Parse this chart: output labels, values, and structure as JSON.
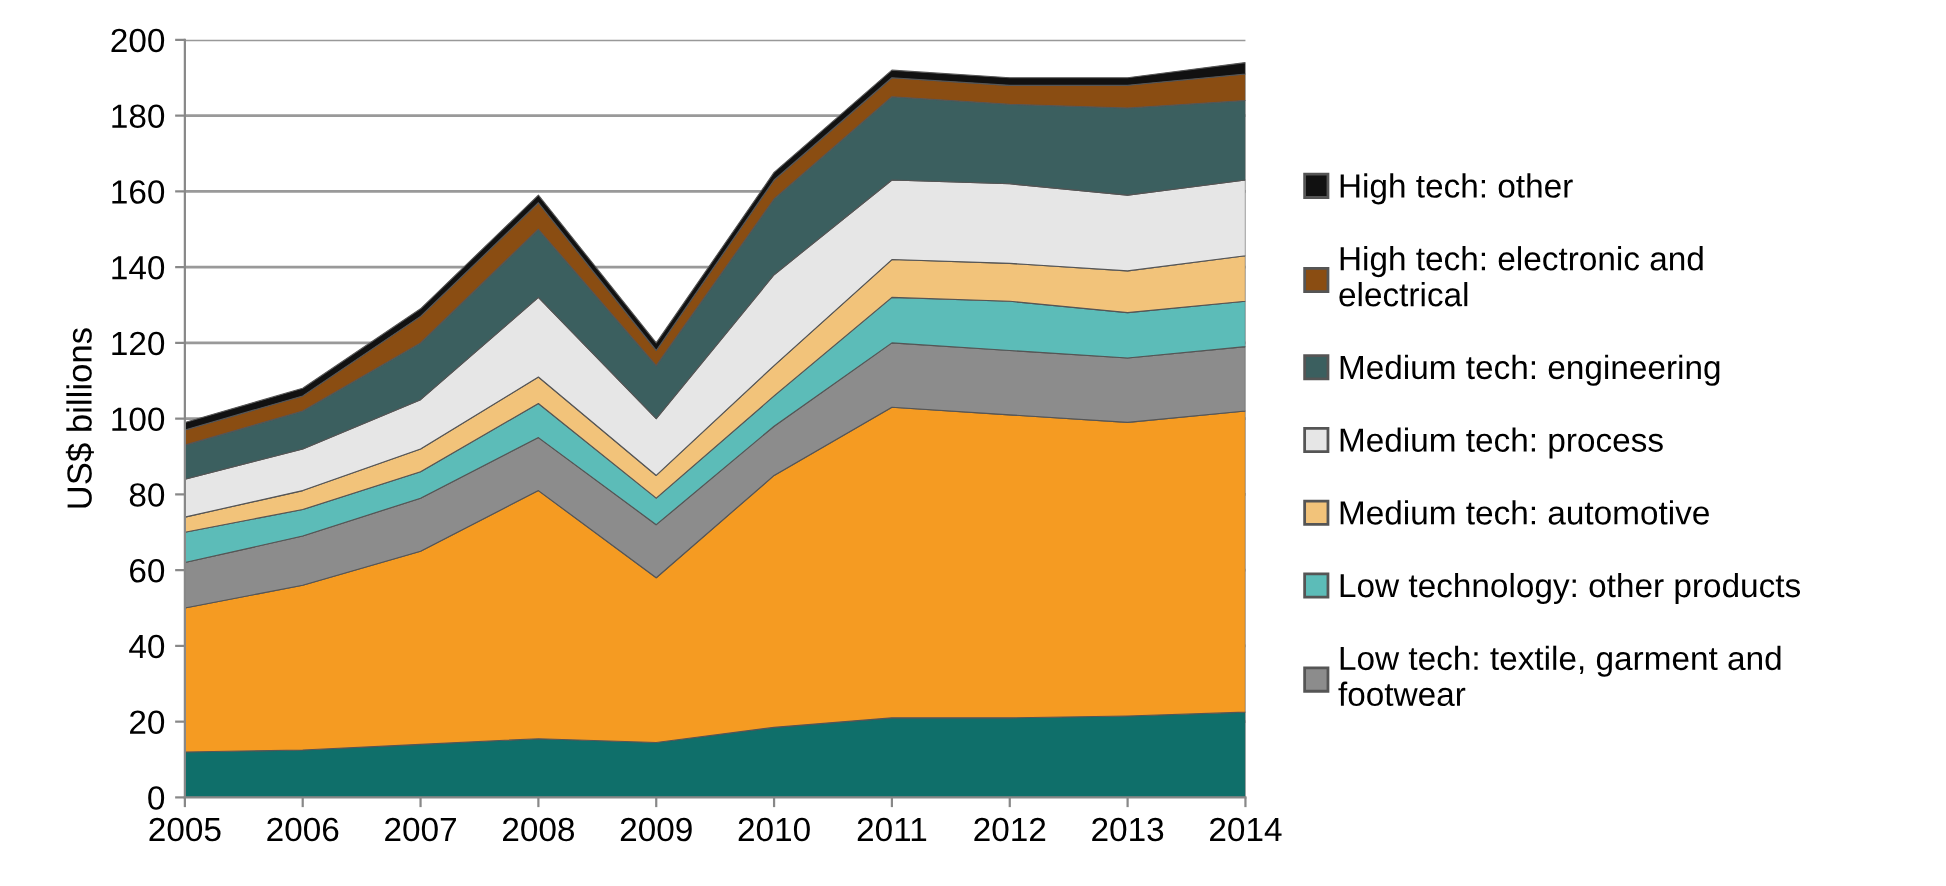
{
  "chart_data": {
    "type": "area",
    "stacked": true,
    "ylabel": "US$ billions",
    "x": [
      "2005",
      "2006",
      "2007",
      "2008",
      "2009",
      "2010",
      "2011",
      "2012",
      "2013",
      "2014"
    ],
    "xlim": [
      "2005",
      "2014"
    ],
    "xticks": [
      "2005",
      "2006",
      "2007",
      "2008",
      "2009",
      "2010",
      "2011",
      "2012",
      "2013",
      "2014"
    ],
    "ylim": [
      0,
      200
    ],
    "yticks": [
      0,
      20,
      40,
      60,
      80,
      100,
      120,
      140,
      160,
      180,
      200
    ],
    "grid": "y",
    "legend": "right",
    "series": [
      {
        "color": "#0f6f6a",
        "values": [
          12,
          12.5,
          14,
          15.5,
          14.5,
          18.5,
          21,
          21,
          21.5,
          22.5
        ]
      },
      {
        "color": "#f59b22",
        "values": [
          38,
          43.5,
          51,
          65.5,
          43.5,
          66.5,
          82,
          80,
          77.5,
          79.5
        ]
      },
      {
        "name": "Low tech: textile, garment and\nfootwear",
        "color": "#8c8c8c",
        "values": [
          12,
          13,
          14,
          14,
          14,
          13,
          17,
          17,
          17,
          17
        ]
      },
      {
        "name": "Low technology: other products",
        "color": "#5cbcb8",
        "values": [
          8,
          7,
          7,
          9,
          7,
          8,
          12,
          13,
          12,
          12
        ]
      },
      {
        "name": "Medium tech: automotive",
        "color": "#f2c37a",
        "values": [
          4,
          5,
          6,
          7,
          6,
          8,
          10,
          10,
          11,
          12
        ]
      },
      {
        "name": "Medium tech: process",
        "color": "#e6e6e6",
        "values": [
          10,
          11,
          13,
          21,
          15,
          24,
          21,
          21,
          20,
          20
        ]
      },
      {
        "name": "Medium tech: engineering",
        "color": "#3b5f5f",
        "values": [
          9,
          10,
          15,
          18,
          14,
          20,
          22,
          21,
          23,
          21
        ]
      },
      {
        "name": "High tech: electronic and\nelectrical",
        "color": "#8a4d12",
        "values": [
          4,
          4,
          7,
          7,
          4,
          5,
          5,
          5,
          6,
          7
        ]
      },
      {
        "name": "High tech: other",
        "color": "#111111",
        "values": [
          2,
          2,
          2,
          2,
          2,
          2,
          2,
          2,
          2,
          3
        ]
      }
    ]
  }
}
